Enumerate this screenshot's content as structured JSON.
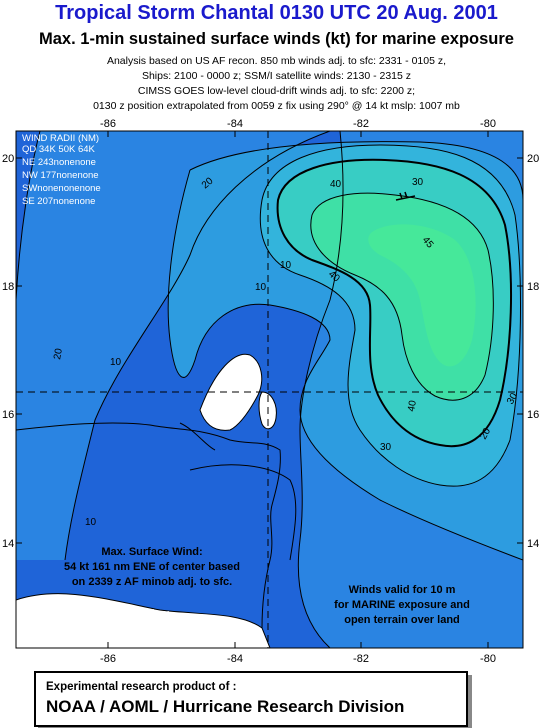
{
  "header": {
    "title": "Tropical Storm Chantal  0130 UTC 20 Aug. 2001",
    "subtitle": "Max. 1-min sustained surface winds (kt) for marine exposure",
    "lines": [
      "Analysis based on US AF recon. 850 mb winds adj. to sfc: 2331 - 0105 z,",
      "Ships: 2100 - 0000 z; SSM/I satellite winds: 2130 - 2315 z",
      "CIMSS GOES low-level cloud-drift winds adj. to sfc: 2200 z;",
      "0130 z position extrapolated from 0059 z fix using 290° @ 14 kt  mslp: 1007 mb"
    ]
  },
  "map": {
    "lon_ticks": [
      "-86",
      "-84",
      "-82",
      "-80"
    ],
    "lat_ticks": [
      "20",
      "18",
      "16",
      "14"
    ],
    "wind_radii": {
      "title": "WIND RADII (NM)",
      "header": "QD  34K  50K  64K",
      "rows": [
        "NE 243nonenone",
        "NW 177nonenone",
        "SWnonenonenone",
        "SE 207nonenone"
      ]
    },
    "contour_labels": [
      "10",
      "20",
      "30",
      "40",
      "45",
      "10",
      "20",
      "30",
      "40",
      "10",
      "20",
      "30",
      "10",
      "20",
      "30"
    ],
    "max_wind": [
      "Max. Surface Wind:",
      "54 kt 161 nm ENE of  center based",
      "on 2339 z AF minob adj. to sfc."
    ],
    "validity": [
      "Winds valid for 10 m",
      "for MARINE exposure  and",
      "open terrain over land"
    ],
    "credit_fragment": "Research Division:"
  },
  "footer": {
    "line1": "Experimental research product of :",
    "line2": "NOAA / AOML / Hurricane Research Division"
  },
  "colors": {
    "c0": "#1f64d8",
    "c10": "#2a84e2",
    "c20": "#2d9ce0",
    "c30": "#33b4dc",
    "c40": "#38cdc4",
    "c45": "#3fe0a6",
    "land": "#ffffff"
  }
}
